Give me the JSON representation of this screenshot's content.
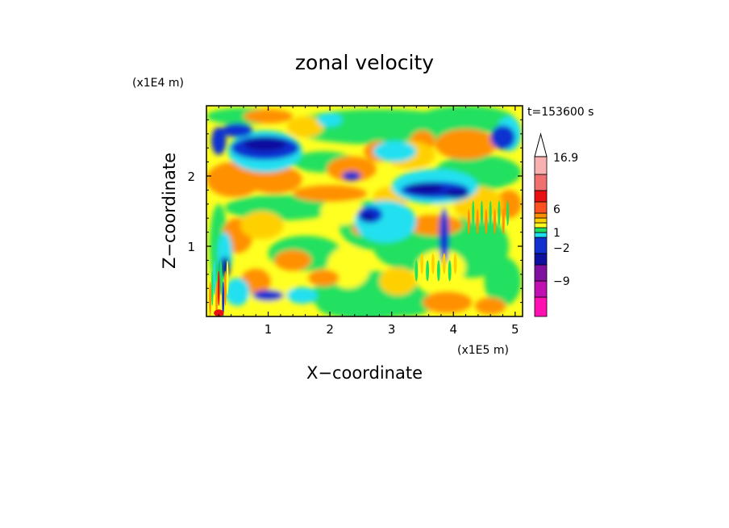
{
  "chart_data": {
    "type": "heatmap",
    "title": "zonal velocity",
    "xlabel": "X−coordinate",
    "ylabel": "Z−coordinate",
    "x_unit": "(x1E5 m)",
    "y_unit": "(x1E4 m)",
    "time_label": "t=153600 s",
    "xlim": [
      0,
      5.12
    ],
    "ylim": [
      0,
      3.0
    ],
    "x_ticks": [
      "1",
      "2",
      "3",
      "4",
      "5"
    ],
    "y_ticks": [
      "1",
      "2"
    ],
    "colorbar": {
      "labels": [
        "16.9",
        "6",
        "1",
        "−2",
        "−9"
      ],
      "extend_max": true,
      "colors": [
        "#ff10b0",
        "#c010b0",
        "#8010a0",
        "#1010a0",
        "#1030d0",
        "#20e0f0",
        "#20e060",
        "#ffff20",
        "#ffd000",
        "#ff9000",
        "#ff5020",
        "#e81010",
        "#f07070",
        "#f8b0b0"
      ]
    },
    "field_description": "Contoured zonal wind on an X-Z grid; negative (blue) jets near Z=2.5 at X=0.3-1.0 and Z=1.8 at X=3.3-4.0, positive (orange) bands near Z=2.0 at X=0.2-1.0 and Z=2.4 at X=3.5-4.5; low-level alternating bands near X=0.1-0.3."
  }
}
